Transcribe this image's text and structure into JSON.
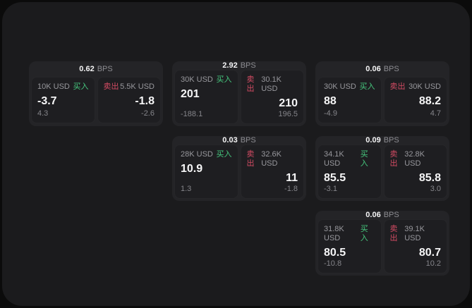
{
  "labels": {
    "bps_unit": "BPS",
    "buy": "买入",
    "sell": "卖出"
  },
  "colors": {
    "page_background": "#0b0b0b",
    "panel_background": "#1b1b1d",
    "card_background": "#242427",
    "tile_background": "#1e1e21",
    "buy_accent": "#46c87e",
    "sell_accent": "#d34b63",
    "primary_text": "#f4f4f5",
    "muted_text": "#98989d"
  },
  "cards": [
    {
      "bps": "0.62",
      "buy": {
        "amount": "10K USD",
        "price": "-3.7",
        "delta": "4.3"
      },
      "sell": {
        "amount": "5.5K USD",
        "price": "-1.8",
        "delta": "-2.6"
      }
    },
    {
      "bps": "2.92",
      "buy": {
        "amount": "30K USD",
        "price": "201",
        "delta": "-188.1"
      },
      "sell": {
        "amount": "30.1K USD",
        "price": "210",
        "delta": "196.5"
      }
    },
    {
      "bps": "0.06",
      "buy": {
        "amount": "30K USD",
        "price": "88",
        "delta": "-4.9"
      },
      "sell": {
        "amount": "30K USD",
        "price": "88.2",
        "delta": "4.7"
      }
    },
    {
      "bps": "0.03",
      "buy": {
        "amount": "28K USD",
        "price": "10.9",
        "delta": "1.3"
      },
      "sell": {
        "amount": "32.6K USD",
        "price": "11",
        "delta": "-1.8"
      }
    },
    {
      "bps": "0.09",
      "buy": {
        "amount": "34.1K USD",
        "price": "85.5",
        "delta": "-3.1"
      },
      "sell": {
        "amount": "32.8K USD",
        "price": "85.8",
        "delta": "3.0"
      }
    },
    {
      "bps": "0.06",
      "buy": {
        "amount": "31.8K USD",
        "price": "80.5",
        "delta": "-10.8"
      },
      "sell": {
        "amount": "39.1K USD",
        "price": "80.7",
        "delta": "10.2"
      }
    }
  ]
}
